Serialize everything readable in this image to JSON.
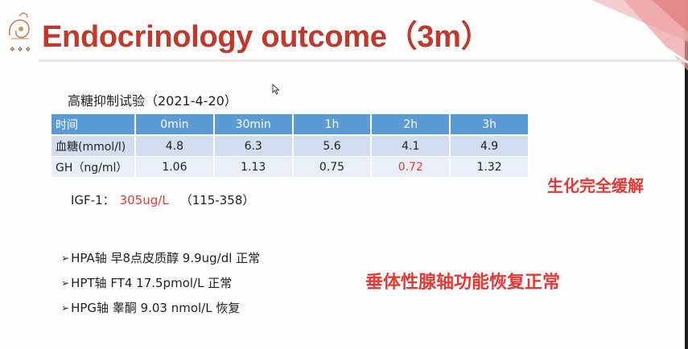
{
  "slide": {
    "title": "Endocrinology outcome（3m）",
    "logo_name": "logo-emblem"
  },
  "suppression_test": {
    "title": "高糖抑制试验（2021-4-20）",
    "header": [
      "时间",
      "0min",
      "30min",
      "1h",
      "2h",
      "3h"
    ],
    "rows": [
      [
        "血糖(mmol/l)",
        "4.8",
        "6.3",
        "5.6",
        "4.1",
        "4.9"
      ],
      [
        "GH（ng/ml）",
        "1.06",
        "1.13",
        "0.75",
        "0.72",
        "1.32"
      ]
    ],
    "highlight_color": "#e53935",
    "header_color": "#5b9bd5"
  },
  "igf1": {
    "label": "IGF-1：",
    "value": "305ug/L",
    "range": "（115-358）"
  },
  "conclusions": {
    "biochemical": "生化完全缓解",
    "pituitary": "垂体性腺轴功能恢复正常"
  },
  "axes": [
    "HPA轴 早8点皮质醇 9.9ug/dl  正常",
    "HPT轴 FT4 17.5pmol/L  正常",
    "HPG轴 睾酮 9.03 nmol/L   恢复"
  ],
  "colors": {
    "title": "#c0392b",
    "accent_red": "#e53935"
  }
}
